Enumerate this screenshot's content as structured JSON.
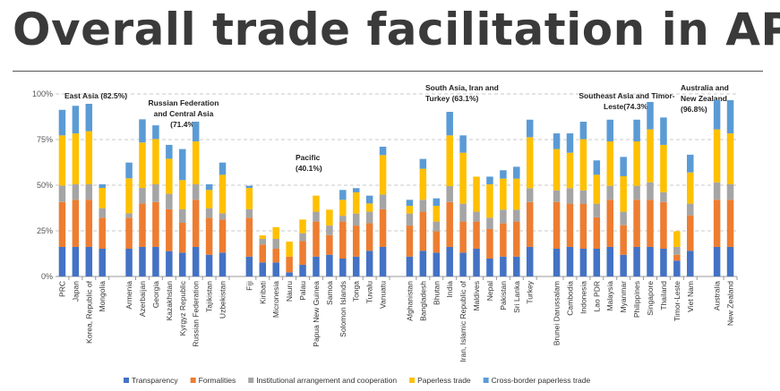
{
  "title": "Overall trade facilitation in AP",
  "chart_data": {
    "type": "bar",
    "stacked": true,
    "title": "",
    "xlabel": "",
    "ylabel": "",
    "ylim": [
      0,
      100
    ],
    "yticks": [
      "0%",
      "25%",
      "50%",
      "75%",
      "100%"
    ],
    "grid": true,
    "legend_position": "bottom",
    "groups": [
      {
        "label": [
          "East Asia (82.5%)"
        ],
        "countries": [
          "PRC",
          "Japan",
          "Korea, Republic of",
          "Mongolia"
        ]
      },
      {
        "label": [
          "Russian Federation",
          "and Central Asia",
          "(71.4%)"
        ],
        "countries": [
          "Armenia",
          "Azerbaijan",
          "Georgia",
          "Kazakhstan",
          "Kyrgyz Republic",
          "Russian Federation",
          "Tajikistan",
          "Uzbekistan"
        ]
      },
      {
        "label": [
          "Pacific",
          "(40.1%)"
        ],
        "countries": [
          "Fiji",
          "Kiribati",
          "Micronesia",
          "Nauru",
          "Palau",
          "Papua New Guinea",
          "Samoa",
          "Solomon Islands",
          "Tonga",
          "Tuvalu",
          "Vanuatu"
        ]
      },
      {
        "label": [
          "South Asia, Iran and",
          "Turkey (63.1%)"
        ],
        "countries": [
          "Afghanistan",
          "Bangladesh",
          "Bhutan",
          "India",
          "Iran, Islamic Republic of",
          "Maldives",
          "Nepal",
          "Pakistan",
          "Sri Lanka",
          "Turkey"
        ]
      },
      {
        "label": [
          "Southeast Asia and Timor-",
          "Leste(74.3%)"
        ],
        "countries": [
          "Brunei Darussalam",
          "Cambodia",
          "Indonesia",
          "Lao PDR",
          "Malaysia",
          "Myanmar",
          "Philippines",
          "Singapore",
          "Thailand",
          "Timor-Leste",
          "Viet Nam"
        ]
      },
      {
        "label": [
          "Australia and",
          "New Zealand",
          "(96.8%)"
        ],
        "countries": [
          "Australia",
          "New Zealand"
        ]
      }
    ],
    "series": [
      {
        "name": "Transparency",
        "color": "#4472C4",
        "values": [
          16.2,
          16.2,
          16.2,
          15.2,
          15.2,
          16.2,
          16.2,
          13.9,
          13.1,
          16.2,
          11.9,
          13.1,
          10.9,
          7.7,
          7.7,
          2.3,
          6.4,
          10.9,
          11.9,
          9.8,
          10.9,
          14.1,
          16.2,
          10.9,
          14.1,
          13.1,
          16.2,
          13.1,
          15.2,
          9.8,
          10.9,
          10.9,
          16.2,
          15.2,
          16.2,
          15.2,
          15.2,
          16.2,
          11.9,
          16.2,
          16.2,
          15.2,
          8.7,
          14.1,
          16.2,
          16.2
        ]
      },
      {
        "name": "Formalities",
        "color": "#ED7D31",
        "values": [
          24.6,
          25.8,
          25.8,
          17.0,
          17.0,
          23.8,
          24.6,
          22.9,
          16.3,
          25.8,
          20.3,
          18.1,
          21.3,
          9.8,
          7.5,
          8.6,
          13.0,
          19.2,
          10.8,
          20.3,
          17.0,
          15.1,
          20.6,
          17.0,
          21.4,
          11.7,
          24.6,
          17.0,
          14.9,
          16.2,
          18.2,
          19.2,
          24.6,
          25.6,
          23.7,
          24.7,
          17.2,
          25.8,
          16.2,
          25.8,
          25.8,
          25.6,
          3.2,
          19.4,
          25.8,
          25.8
        ]
      },
      {
        "name": "Institutional arrangement and cooperation",
        "color": "#A5A5A5",
        "values": [
          9.0,
          8.5,
          8.5,
          5.2,
          2.4,
          8.5,
          9.7,
          8.5,
          7.4,
          8.5,
          5.2,
          3.4,
          4.6,
          3.1,
          5.4,
          0,
          4.3,
          5.4,
          5.2,
          3.2,
          6.6,
          6.3,
          8.1,
          6.6,
          6.5,
          5.3,
          8.7,
          9.8,
          5.4,
          6.2,
          7.5,
          6.5,
          7.6,
          6.4,
          8.5,
          7.3,
          7.5,
          7.7,
          7.4,
          7.7,
          9.6,
          5.4,
          4.3,
          6.4,
          9.6,
          8.5
        ]
      },
      {
        "name": "Paperless trade",
        "color": "#FFC000",
        "values": [
          27.5,
          27.9,
          29.1,
          11.1,
          19.2,
          24.9,
          24.8,
          19.2,
          16.0,
          23.5,
          10.0,
          21.1,
          11.7,
          1.9,
          6.4,
          8.2,
          7.5,
          8.8,
          8.7,
          8.7,
          11.6,
          4.5,
          21.6,
          4.2,
          17.0,
          8.6,
          27.8,
          27.9,
          19.2,
          18.3,
          17.0,
          17.0,
          27.9,
          22.6,
          19.4,
          28.0,
          15.8,
          24.3,
          19.4,
          24.3,
          29.0,
          25.9,
          8.6,
          17.1,
          29.0,
          27.9
        ]
      },
      {
        "name": "Cross-border paperless trade",
        "color": "#5B9BD5",
        "values": [
          14.0,
          15.1,
          15.0,
          2.0,
          8.6,
          12.7,
          7.5,
          7.6,
          17.0,
          10.8,
          3.1,
          6.7,
          1.2,
          0,
          0,
          0,
          0,
          0,
          0,
          5.4,
          2.3,
          4.3,
          4.6,
          3.3,
          5.4,
          4.1,
          12.9,
          9.5,
          0,
          4.2,
          4.6,
          6.5,
          9.6,
          8.6,
          10.6,
          9.6,
          7.9,
          11.9,
          10.6,
          11.9,
          15.0,
          15.0,
          0,
          9.7,
          16.0,
          18.2
        ]
      }
    ]
  }
}
